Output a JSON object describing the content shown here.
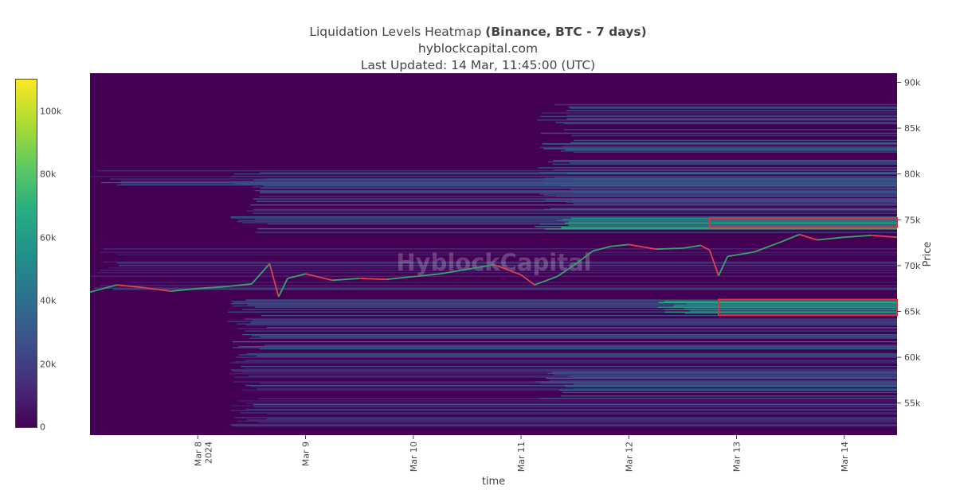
{
  "title": {
    "main": "Liquidation Levels Heatmap",
    "bold": "(Binance, BTC - 7 days)",
    "site": "hyblockcapital.com",
    "updated": "Last Updated: 14 Mar, 11:45:00 (UTC)"
  },
  "watermark": "HyblockCapital",
  "colors": {
    "background": "#440154",
    "price_up": "#3aa36b",
    "price_down": "#e0424a",
    "highlight_box": "#e0303a",
    "colorscale": [
      "#440154",
      "#472d7b",
      "#3b528b",
      "#2c728e",
      "#21918c",
      "#28ae80",
      "#5ec962",
      "#addc30",
      "#fde725"
    ]
  },
  "chart_data": {
    "type": "heatmap",
    "xlabel": "time",
    "ylabel": "Price",
    "x_range": [
      "2024-03-07 00:00",
      "2024-03-14 11:45"
    ],
    "y_range": [
      51500,
      91000
    ],
    "x_ticks": [
      {
        "date": "2024-03-08",
        "label": "Mar 8",
        "sub": "2024"
      },
      {
        "date": "2024-03-09",
        "label": "Mar 9",
        "sub": ""
      },
      {
        "date": "2024-03-10",
        "label": "Mar 10",
        "sub": ""
      },
      {
        "date": "2024-03-11",
        "label": "Mar 11",
        "sub": ""
      },
      {
        "date": "2024-03-12",
        "label": "Mar 12",
        "sub": ""
      },
      {
        "date": "2024-03-13",
        "label": "Mar 13",
        "sub": ""
      },
      {
        "date": "2024-03-14",
        "label": "Mar 14",
        "sub": ""
      }
    ],
    "y_ticks": [
      {
        "value": 55000,
        "label": "55k"
      },
      {
        "value": 60000,
        "label": "60k"
      },
      {
        "value": 65000,
        "label": "65k"
      },
      {
        "value": 70000,
        "label": "70k"
      },
      {
        "value": 75000,
        "label": "75k"
      },
      {
        "value": 80000,
        "label": "80k"
      },
      {
        "value": 85000,
        "label": "85k"
      },
      {
        "value": 90000,
        "label": "90k"
      }
    ],
    "colorbar": {
      "range": [
        0,
        110000
      ],
      "ticks": [
        {
          "value": 0,
          "label": "0"
        },
        {
          "value": 20000,
          "label": "20k"
        },
        {
          "value": 40000,
          "label": "40k"
        },
        {
          "value": 60000,
          "label": "60k"
        },
        {
          "value": 80000,
          "label": "80k"
        },
        {
          "value": 100000,
          "label": "100k"
        }
      ]
    },
    "price_series": [
      [
        "2024-03-07 00:00",
        67100
      ],
      [
        "2024-03-07 06:00",
        67900
      ],
      [
        "2024-03-07 12:00",
        67600
      ],
      [
        "2024-03-07 18:00",
        67200
      ],
      [
        "2024-03-08 00:00",
        67500
      ],
      [
        "2024-03-08 06:00",
        67700
      ],
      [
        "2024-03-08 12:00",
        68000
      ],
      [
        "2024-03-08 16:00",
        70200
      ],
      [
        "2024-03-08 18:00",
        66600
      ],
      [
        "2024-03-08 20:00",
        68600
      ],
      [
        "2024-03-09 00:00",
        69100
      ],
      [
        "2024-03-09 06:00",
        68400
      ],
      [
        "2024-03-09 12:00",
        68600
      ],
      [
        "2024-03-09 18:00",
        68500
      ],
      [
        "2024-03-10 00:00",
        68800
      ],
      [
        "2024-03-10 06:00",
        69100
      ],
      [
        "2024-03-10 12:00",
        69600
      ],
      [
        "2024-03-10 18:00",
        70100
      ],
      [
        "2024-03-11 00:00",
        69000
      ],
      [
        "2024-03-11 03:00",
        67900
      ],
      [
        "2024-03-11 08:00",
        68800
      ],
      [
        "2024-03-11 12:00",
        70100
      ],
      [
        "2024-03-11 16:00",
        71600
      ],
      [
        "2024-03-11 20:00",
        72100
      ],
      [
        "2024-03-12 00:00",
        72300
      ],
      [
        "2024-03-12 06:00",
        71800
      ],
      [
        "2024-03-12 12:00",
        71900
      ],
      [
        "2024-03-12 16:00",
        72200
      ],
      [
        "2024-03-12 18:00",
        71700
      ],
      [
        "2024-03-12 20:00",
        68900
      ],
      [
        "2024-03-12 22:00",
        71000
      ],
      [
        "2024-03-13 04:00",
        71500
      ],
      [
        "2024-03-13 10:00",
        72600
      ],
      [
        "2024-03-13 14:00",
        73400
      ],
      [
        "2024-03-13 18:00",
        72800
      ],
      [
        "2024-03-14 00:00",
        73100
      ],
      [
        "2024-03-14 06:00",
        73300
      ],
      [
        "2024-03-14 11:45",
        73100
      ]
    ],
    "highlights": [
      {
        "t0": "2024-03-12 18:00",
        "t1": "2024-03-14 11:45",
        "p0": 74200,
        "p1": 75200
      },
      {
        "t0": "2024-03-12 20:00",
        "t1": "2024-03-14 11:45",
        "p0": 64600,
        "p1": 66300
      }
    ]
  }
}
